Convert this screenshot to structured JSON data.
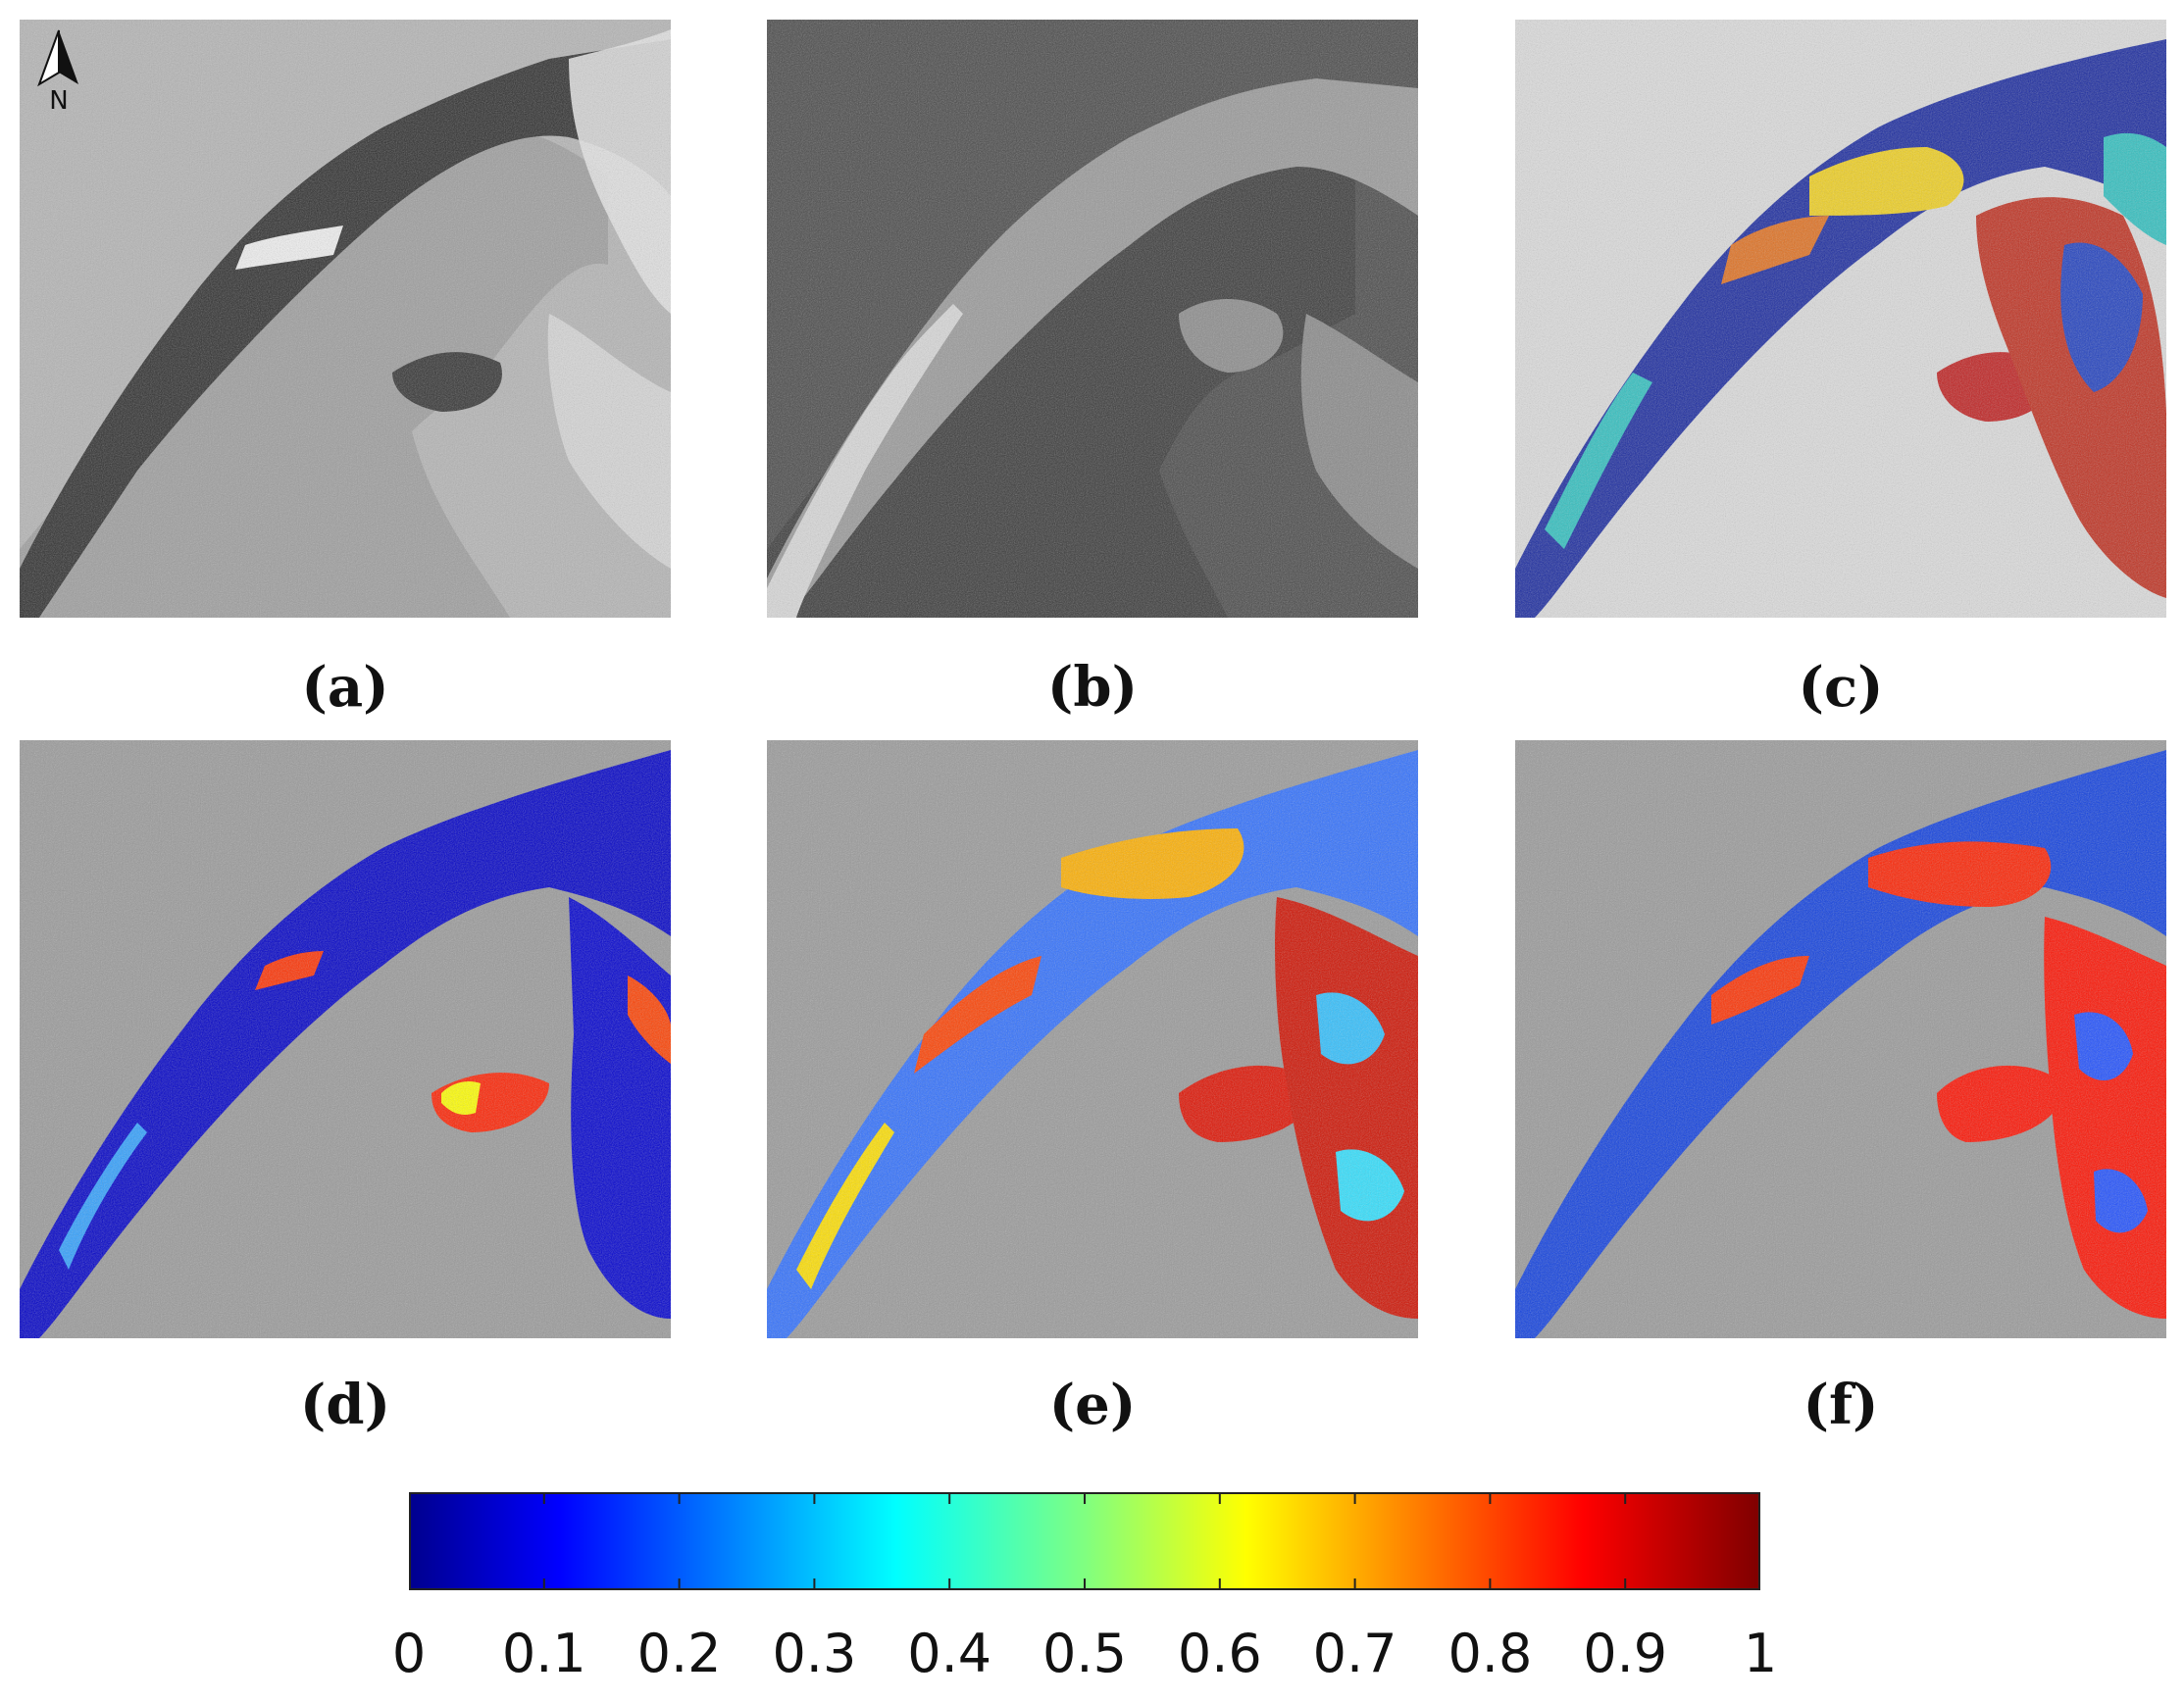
{
  "panels": [
    {
      "id": "a",
      "label": "(a)"
    },
    {
      "id": "b",
      "label": "(b)"
    },
    {
      "id": "c",
      "label": "(c)"
    },
    {
      "id": "d",
      "label": "(d)"
    },
    {
      "id": "e",
      "label": "(e)"
    },
    {
      "id": "f",
      "label": "(f)"
    }
  ],
  "north_arrow": {
    "letter": "N"
  },
  "colorbar": {
    "min": 0,
    "max": 1,
    "tick_labels": [
      "0",
      "0.1",
      "0.2",
      "0.3",
      "0.4",
      "0.5",
      "0.6",
      "0.7",
      "0.8",
      "0.9",
      "1"
    ],
    "colormap": "jet",
    "colors": [
      "#00008f",
      "#0000ff",
      "#0080ff",
      "#00ffff",
      "#80ff80",
      "#ffff00",
      "#ff8000",
      "#ff0000",
      "#800000"
    ]
  },
  "map_colors": {
    "land": "#a9a9a9",
    "water_dark": "#2b2b2b",
    "ice_bright": "#e8e8e8"
  }
}
